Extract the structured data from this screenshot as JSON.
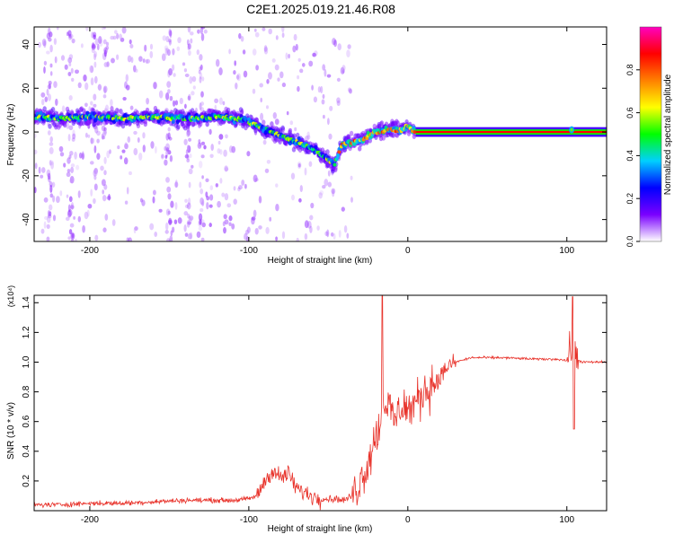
{
  "figure_title": "C2E1.2025.019.21.46.R08",
  "chart_data": [
    {
      "type": "heatmap",
      "title": "",
      "xlabel": "Height of straight line (km)",
      "ylabel": "Frequency (Hz)",
      "xlim": [
        -235,
        125
      ],
      "ylim": [
        -50,
        48
      ],
      "x_ticks": [
        -200,
        -100,
        0,
        100
      ],
      "y_ticks": [
        -40,
        -20,
        0,
        20,
        40
      ],
      "x_tick_labels": [
        "-200",
        "-100",
        "0",
        "100"
      ],
      "y_tick_labels": [
        "-40",
        "-20",
        "0",
        "20",
        "40"
      ],
      "colorbar": {
        "label": "Normalized spectral amplitude",
        "range": [
          0,
          1
        ],
        "ticks": [
          0.0,
          0.2,
          0.4,
          0.6,
          0.8
        ],
        "tick_labels": [
          "0.0",
          "0.2",
          "0.4",
          "0.6",
          "0.8"
        ],
        "colormap": [
          "#ffffff",
          "#7a00ff",
          "#0000ff",
          "#00d0ff",
          "#00ff00",
          "#ffff00",
          "#ff8000",
          "#ff0000",
          "#ff00c0"
        ]
      },
      "frequency_trace": {
        "x": [
          -235,
          -220,
          -200,
          -180,
          -160,
          -140,
          -120,
          -105,
          -95,
          -85,
          -75,
          -65,
          -55,
          -46,
          -42,
          -35,
          -28,
          -20,
          -12,
          -5,
          0,
          5,
          40,
          80,
          100,
          103,
          106,
          125
        ],
        "y": [
          7,
          6,
          7,
          6,
          7,
          6,
          7,
          6,
          3,
          0,
          -3,
          -6,
          -10,
          -15,
          -6,
          -5,
          -3,
          0,
          1,
          1,
          2,
          0,
          0,
          0,
          0,
          1,
          0,
          0
        ]
      },
      "grid": false
    },
    {
      "type": "line",
      "title": "",
      "xlabel": "Height of straight line (km)",
      "ylabel": "SNR (10 * v/v)",
      "y_multiplier_label": "(x10⁴)",
      "xlim": [
        -235,
        125
      ],
      "ylim": [
        0,
        1.45
      ],
      "x_ticks": [
        -200,
        -100,
        0,
        100
      ],
      "y_ticks": [
        0.2,
        0.4,
        0.6,
        0.8,
        1.0,
        1.2,
        1.4
      ],
      "x_tick_labels": [
        "-200",
        "-100",
        "0",
        "100"
      ],
      "y_tick_labels": [
        "0.2",
        "0.4",
        "0.6",
        "0.8",
        "1.0",
        "1.2",
        "1.4"
      ],
      "series": [
        {
          "color": "#e8322a",
          "x": [
            -235,
            -220,
            -200,
            -180,
            -160,
            -140,
            -120,
            -110,
            -100,
            -95,
            -90,
            -85,
            -80,
            -75,
            -70,
            -65,
            -60,
            -55,
            -50,
            -45,
            -40,
            -35,
            -30,
            -25,
            -22,
            -18,
            -15,
            -12,
            -8,
            -4,
            0,
            5,
            10,
            15,
            20,
            25,
            30,
            40,
            60,
            80,
            95,
            100,
            103,
            106,
            110,
            125
          ],
          "y": [
            0.04,
            0.04,
            0.05,
            0.05,
            0.06,
            0.07,
            0.07,
            0.07,
            0.08,
            0.1,
            0.2,
            0.27,
            0.22,
            0.25,
            0.15,
            0.12,
            0.1,
            0.08,
            0.08,
            0.08,
            0.07,
            0.1,
            0.2,
            0.32,
            0.45,
            0.55,
            0.75,
            0.7,
            0.6,
            0.72,
            0.68,
            0.72,
            0.8,
            0.85,
            0.9,
            0.97,
            1.0,
            1.03,
            1.03,
            1.02,
            1.02,
            1.01,
            1.1,
            1.02,
            1.0,
            1.0
          ]
        }
      ],
      "grid": false
    }
  ]
}
